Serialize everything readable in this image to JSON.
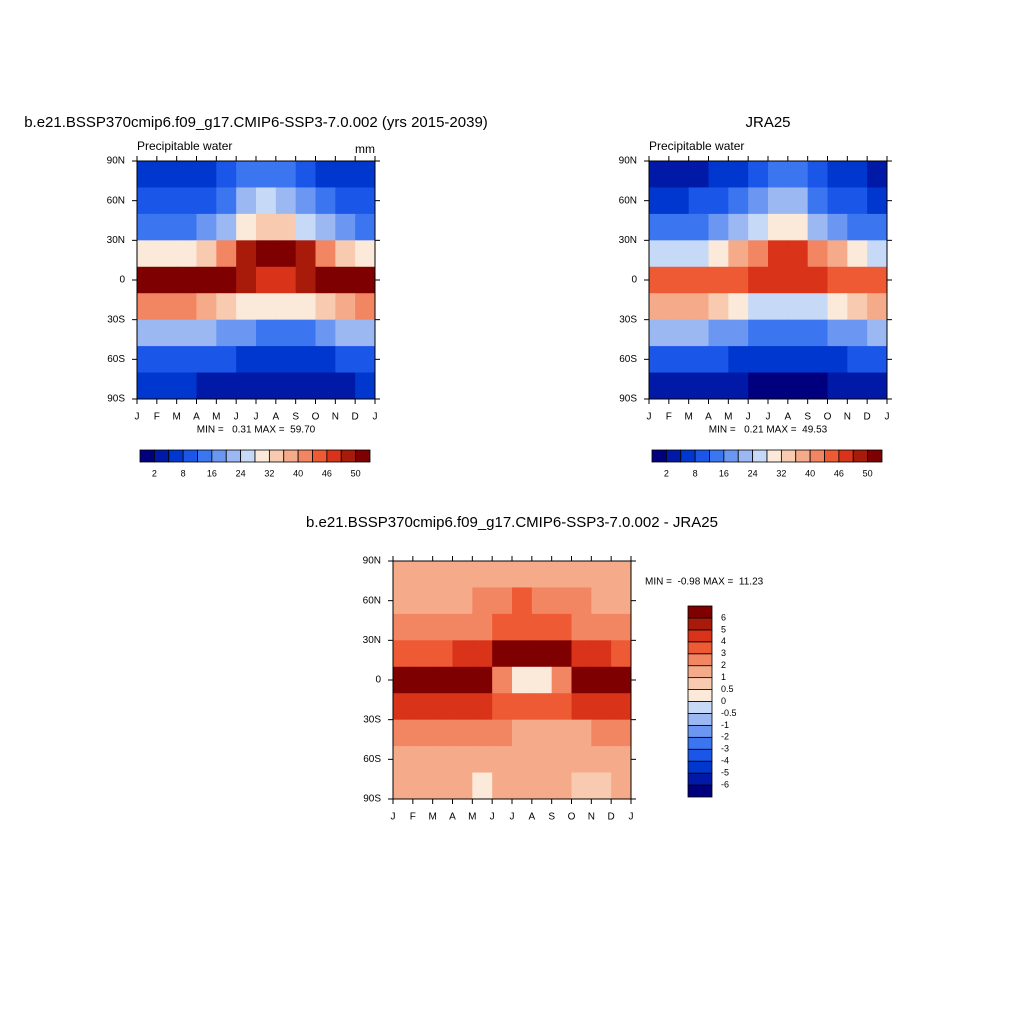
{
  "chart_data": [
    {
      "type": "contour",
      "title": "b.e21.BSSP370cmip6.f09_g17.CMIP6-SSP3-7.0.002 (yrs 2015-2039)",
      "subtitle": "Precipitable water",
      "units": "mm",
      "stats": "MIN =   0.31 MAX =  59.70",
      "month_ticks": [
        "J",
        "F",
        "M",
        "A",
        "M",
        "J",
        "J",
        "A",
        "S",
        "O",
        "N",
        "D",
        "J"
      ],
      "lat": [
        80,
        60,
        40,
        20,
        0,
        -20,
        -40,
        -60,
        -80
      ],
      "ylim": [
        -90,
        90
      ],
      "yticks": [
        {
          "value": 90,
          "label": "90N"
        },
        {
          "value": 60,
          "label": "60N"
        },
        {
          "value": 30,
          "label": "30N"
        },
        0,
        {
          "value": -30,
          "label": "30S"
        },
        {
          "value": -60,
          "label": "60S"
        },
        {
          "value": -90,
          "label": "90S"
        }
      ],
      "z": [
        [
          4,
          4,
          4,
          5,
          8,
          12,
          14,
          13,
          9,
          6,
          5,
          4
        ],
        [
          8,
          8,
          9,
          11,
          15,
          20,
          24,
          22,
          16,
          12,
          9,
          8
        ],
        [
          14,
          14,
          15,
          18,
          22,
          28,
          32,
          32,
          26,
          20,
          16,
          14
        ],
        [
          28,
          28,
          30,
          34,
          40,
          48,
          54,
          54,
          48,
          40,
          34,
          30
        ],
        [
          54,
          54,
          54,
          52,
          50,
          48,
          46,
          46,
          48,
          50,
          52,
          54
        ],
        [
          42,
          42,
          42,
          38,
          34,
          30,
          28,
          28,
          30,
          34,
          38,
          42
        ],
        [
          22,
          22,
          22,
          20,
          18,
          16,
          14,
          14,
          15,
          17,
          20,
          22
        ],
        [
          10,
          10,
          10,
          9,
          8,
          7,
          6,
          6,
          6,
          7,
          9,
          10
        ],
        [
          4,
          4,
          4,
          3,
          2,
          2,
          2,
          2,
          2,
          2,
          3,
          4
        ]
      ],
      "colorbar": {
        "orientation": "horizontal",
        "levels": [
          2,
          4,
          8,
          12,
          16,
          20,
          24,
          28,
          32,
          36,
          40,
          44,
          46,
          48,
          50
        ],
        "colors": [
          "#00007f",
          "#0019a6",
          "#0037cf",
          "#1a56e8",
          "#3b75f0",
          "#6b97f2",
          "#9bb8f3",
          "#c6d9f7",
          "#fbe9d9",
          "#f8cbb0",
          "#f5ab8a",
          "#f28562",
          "#ee5a34",
          "#d9331a",
          "#a81a0a",
          "#7f0000"
        ]
      }
    },
    {
      "type": "contour",
      "title": "JRA25",
      "subtitle": "Precipitable water",
      "stats": "MIN =   0.21 MAX =  49.53",
      "month_ticks": [
        "J",
        "F",
        "M",
        "A",
        "M",
        "J",
        "J",
        "A",
        "S",
        "O",
        "N",
        "D",
        "J"
      ],
      "lat": [
        80,
        60,
        40,
        20,
        0,
        -20,
        -40,
        -60,
        -80
      ],
      "ylim": [
        -90,
        90
      ],
      "yticks": [
        {
          "value": 90,
          "label": "90N"
        },
        {
          "value": 60,
          "label": "60N"
        },
        {
          "value": 30,
          "label": "30N"
        },
        0,
        {
          "value": -30,
          "label": "30S"
        },
        {
          "value": -60,
          "label": "60S"
        },
        {
          "value": -90,
          "label": "90S"
        }
      ],
      "z": [
        [
          3,
          3,
          3,
          4,
          7,
          11,
          13,
          12,
          8,
          5,
          4,
          3
        ],
        [
          7,
          7,
          8,
          10,
          13,
          18,
          21,
          20,
          14,
          10,
          8,
          7
        ],
        [
          12,
          12,
          13,
          16,
          20,
          25,
          29,
          29,
          23,
          18,
          14,
          12
        ],
        [
          25,
          25,
          27,
          30,
          36,
          42,
          46,
          46,
          42,
          36,
          30,
          27
        ],
        [
          44,
          44,
          44,
          44,
          44,
          46,
          46,
          46,
          46,
          44,
          44,
          44
        ],
        [
          38,
          38,
          38,
          34,
          30,
          27,
          25,
          25,
          27,
          30,
          34,
          38
        ],
        [
          20,
          20,
          20,
          18,
          16,
          14,
          13,
          13,
          14,
          16,
          18,
          20
        ],
        [
          9,
          9,
          9,
          8,
          7,
          6,
          5,
          5,
          5,
          6,
          8,
          9
        ],
        [
          3,
          3,
          3,
          2,
          2,
          1,
          1,
          1,
          1,
          2,
          2,
          3
        ]
      ],
      "colorbar": {
        "orientation": "horizontal",
        "levels": [
          2,
          4,
          8,
          12,
          16,
          20,
          24,
          28,
          32,
          36,
          40,
          44,
          46,
          48,
          50
        ],
        "colors": [
          "#00007f",
          "#0019a6",
          "#0037cf",
          "#1a56e8",
          "#3b75f0",
          "#6b97f2",
          "#9bb8f3",
          "#c6d9f7",
          "#fbe9d9",
          "#f8cbb0",
          "#f5ab8a",
          "#f28562",
          "#ee5a34",
          "#d9331a",
          "#a81a0a",
          "#7f0000"
        ]
      }
    },
    {
      "type": "contour",
      "title": "b.e21.BSSP370cmip6.f09_g17.CMIP6-SSP3-7.0.002 - JRA25",
      "stats": "MIN =  -0.98 MAX =  11.23",
      "month_ticks": [
        "J",
        "F",
        "M",
        "A",
        "M",
        "J",
        "J",
        "A",
        "S",
        "O",
        "N",
        "D",
        "J"
      ],
      "lat": [
        80,
        60,
        40,
        20,
        0,
        -20,
        -40,
        -60,
        -80
      ],
      "ylim": [
        -90,
        90
      ],
      "yticks": [
        {
          "value": 90,
          "label": "90N"
        },
        {
          "value": 60,
          "label": "60N"
        },
        {
          "value": 30,
          "label": "30N"
        },
        0,
        {
          "value": -30,
          "label": "30S"
        },
        {
          "value": -60,
          "label": "60S"
        },
        {
          "value": -90,
          "label": "90S"
        }
      ],
      "z": [
        [
          1,
          1,
          1,
          1,
          1,
          1,
          1,
          1,
          1,
          1,
          1,
          1
        ],
        [
          1,
          1,
          1,
          1,
          2,
          2,
          3,
          2,
          2,
          2,
          1,
          1
        ],
        [
          2,
          2,
          2,
          2,
          2,
          3,
          3,
          3,
          3,
          2,
          2,
          2
        ],
        [
          3,
          3,
          3,
          4,
          4,
          6,
          8,
          8,
          6,
          4,
          4,
          3
        ],
        [
          10,
          10,
          10,
          8,
          6,
          2,
          0,
          0,
          2,
          6,
          8,
          10
        ],
        [
          4,
          4,
          4,
          4,
          4,
          3,
          3,
          3,
          3,
          4,
          4,
          4
        ],
        [
          2,
          2,
          2,
          2,
          2,
          2,
          1,
          1,
          1,
          1,
          2,
          2
        ],
        [
          1,
          1,
          1,
          1,
          1,
          1,
          1,
          1,
          1,
          1,
          1,
          1
        ],
        [
          1,
          1,
          1,
          1,
          0,
          1,
          1,
          1,
          1,
          0.5,
          0.5,
          1
        ]
      ],
      "colorbar": {
        "orientation": "vertical",
        "levels": [
          -6,
          -5,
          -4,
          -3,
          -2,
          -1,
          -0.5,
          0,
          0.5,
          1,
          2,
          3,
          4,
          5,
          6
        ],
        "colors": [
          "#00007f",
          "#0019a6",
          "#0037cf",
          "#1a56e8",
          "#3b75f0",
          "#6b97f2",
          "#9bb8f3",
          "#c6d9f7",
          "#fbe9d9",
          "#f8cbb0",
          "#f5ab8a",
          "#f28562",
          "#ee5a34",
          "#d9331a",
          "#a81a0a",
          "#7f0000"
        ]
      }
    }
  ]
}
